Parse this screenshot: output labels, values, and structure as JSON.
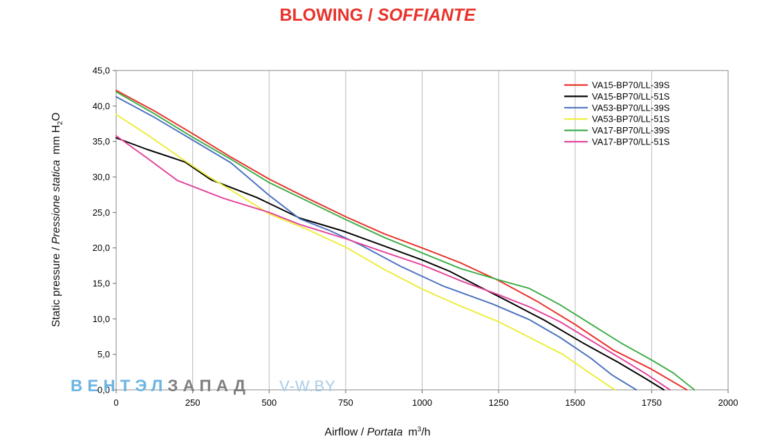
{
  "chart_data": {
    "type": "line",
    "title_main": "BLOWING / ",
    "title_italic": "SOFFIANTE",
    "title_color": "#e8322b",
    "xlabel_main": "Airflow / ",
    "xlabel_italic": "Portata",
    "xlabel_unit_pre": "m",
    "xlabel_unit_sup": "3",
    "xlabel_unit_post": "/h",
    "ylabel_main": "Static pressure / ",
    "ylabel_italic": "Pressione statica",
    "ylabel_unit_pre": "mm  H",
    "ylabel_unit_sub": "2",
    "ylabel_unit_post": "O",
    "xlim": [
      0,
      2000
    ],
    "ylim": [
      0,
      45
    ],
    "x_ticks": [
      0,
      250,
      500,
      750,
      1000,
      1250,
      1500,
      1750,
      2000
    ],
    "x_tick_labels": [
      "0",
      "250",
      "500",
      "750",
      "1000",
      "1250",
      "1500",
      "1750",
      "2000"
    ],
    "y_ticks": [
      0,
      5,
      10,
      15,
      20,
      25,
      30,
      35,
      40,
      45
    ],
    "y_tick_labels": [
      "0,0",
      "5,0",
      "10,0",
      "15,0",
      "20,0",
      "25,0",
      "30,0",
      "35,0",
      "40,0",
      "45,0"
    ],
    "grid": "vertical",
    "legend_position": "top-right",
    "series": [
      {
        "name": "VA15-BP70/LL-39S",
        "color": "#e8322b",
        "x": [
          0,
          125,
          250,
          375,
          500,
          625,
          750,
          875,
          1000,
          1125,
          1250,
          1375,
          1500,
          1625,
          1750,
          1865
        ],
        "y": [
          42.2,
          39.3,
          36.1,
          32.8,
          29.7,
          27.0,
          24.4,
          22.0,
          20.0,
          17.9,
          15.4,
          12.5,
          9.2,
          5.6,
          2.9,
          0.0
        ]
      },
      {
        "name": "VA15-BP70/LL-51S",
        "color": "#000000",
        "x": [
          0,
          100,
          225,
          310,
          460,
          600,
          740,
          880,
          1000,
          1090,
          1180,
          1280,
          1400,
          1530,
          1640,
          1730,
          1790
        ],
        "y": [
          35.5,
          33.9,
          32.1,
          29.6,
          27.1,
          24.2,
          22.4,
          20.2,
          18.3,
          16.7,
          14.7,
          12.5,
          9.8,
          6.5,
          3.9,
          1.6,
          0.0
        ]
      },
      {
        "name": "VA53-BP70/LL-39S",
        "color": "#4b72bf",
        "x": [
          0,
          125,
          250,
          375,
          500,
          600,
          700,
          800,
          930,
          1070,
          1230,
          1350,
          1450,
          1550,
          1620,
          1700
        ],
        "y": [
          41.3,
          38.4,
          35.2,
          32.0,
          27.4,
          24.1,
          22.4,
          20.4,
          17.4,
          14.6,
          12.1,
          9.9,
          7.4,
          4.5,
          2.1,
          0.0
        ]
      },
      {
        "name": "VA53-BP70/LL-51S",
        "color": "#eded3c",
        "x": [
          0,
          100,
          200,
          300,
          400,
          500,
          625,
          750,
          875,
          1000,
          1120,
          1250,
          1350,
          1460,
          1550,
          1630
        ],
        "y": [
          38.8,
          36.0,
          33.0,
          30.1,
          27.5,
          24.8,
          22.6,
          20.1,
          17.0,
          14.2,
          11.9,
          9.6,
          7.4,
          5.0,
          2.3,
          0.0
        ]
      },
      {
        "name": "VA17-BP70/LL-39S",
        "color": "#3fae49",
        "x": [
          0,
          125,
          250,
          375,
          500,
          625,
          750,
          875,
          1000,
          1125,
          1250,
          1350,
          1450,
          1550,
          1650,
          1750,
          1820,
          1890
        ],
        "y": [
          42.0,
          38.9,
          35.6,
          32.5,
          29.2,
          26.6,
          24.0,
          21.5,
          19.3,
          17.1,
          15.5,
          14.3,
          12.0,
          9.3,
          6.6,
          4.2,
          2.4,
          0.0
        ]
      },
      {
        "name": "VA17-BP70/LL-51S",
        "color": "#e3449b",
        "x": [
          0,
          100,
          200,
          350,
          500,
          600,
          750,
          870,
          1000,
          1130,
          1250,
          1350,
          1450,
          1550,
          1650,
          1730,
          1810
        ],
        "y": [
          35.8,
          32.7,
          29.5,
          27.0,
          25.0,
          23.3,
          21.3,
          19.5,
          17.6,
          15.3,
          13.4,
          11.7,
          9.6,
          7.0,
          4.4,
          2.3,
          0.0
        ]
      }
    ]
  },
  "watermark": {
    "part1": "ВЕНТЭЛ",
    "part2": "ЗАПАД",
    "part3": "V-W.BY",
    "color1": "#6cb5e3",
    "color2": "#7f7f7f",
    "color3": "#a8cbe6"
  }
}
